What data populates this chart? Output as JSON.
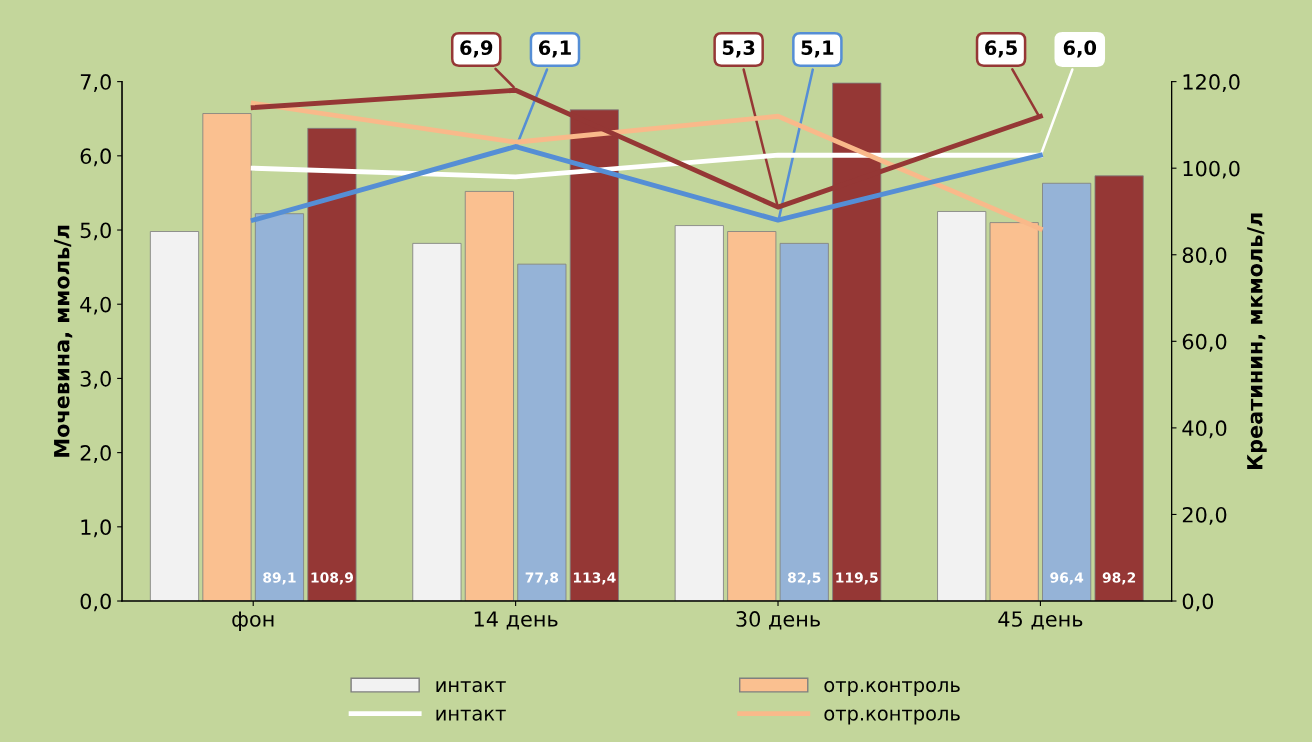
{
  "chart_data": {
    "type": "bar",
    "ylabel": "Мочевина, ммоль/л",
    "y2label": "Креатинин, мкмоль/л",
    "categories": [
      "фон",
      "14 день",
      "30 день",
      "45 день"
    ],
    "ylim": [
      0,
      7
    ],
    "yticks": [
      {
        "value": 0,
        "label": "0,0"
      },
      {
        "value": 1,
        "label": "1,0"
      },
      {
        "value": 2,
        "label": "2,0"
      },
      {
        "value": 3,
        "label": "3,0"
      },
      {
        "value": 4,
        "label": "4,0"
      },
      {
        "value": 5,
        "label": "5,0"
      },
      {
        "value": 6,
        "label": "6,0"
      },
      {
        "value": 7,
        "label": "7,0"
      }
    ],
    "y2lim": [
      0,
      120
    ],
    "y2ticks": [
      {
        "value": 0,
        "label": "0,0"
      },
      {
        "value": 20,
        "label": "20,0"
      },
      {
        "value": 40,
        "label": "40,0"
      },
      {
        "value": 60,
        "label": "60,0"
      },
      {
        "value": 80,
        "label": "80,0"
      },
      {
        "value": 100,
        "label": "100,0"
      },
      {
        "value": 120,
        "label": "120,0"
      }
    ],
    "legend": "bottom",
    "series": [
      {
        "name": "интакт",
        "color": "#f2f2f2",
        "values": [
          4.98,
          4.82,
          5.06,
          5.25
        ]
      },
      {
        "name": "отр.контроль",
        "color": "#fac090",
        "values": [
          6.57,
          5.52,
          4.98,
          5.1
        ]
      },
      {
        "color": "#95b3d7",
        "values": [
          5.22,
          4.54,
          4.82,
          5.63
        ]
      },
      {
        "color": "#953735",
        "values": [
          6.37,
          6.62,
          6.98,
          5.73
        ]
      },
      {
        "type": "line",
        "axis": "y2",
        "name": "интакт",
        "color": "#ffffff",
        "values": [
          100,
          98,
          103,
          103
        ]
      },
      {
        "type": "line",
        "axis": "y2",
        "name": "отр.контроль",
        "color": "#f9b98a",
        "values": [
          115,
          106,
          112,
          86
        ]
      },
      {
        "type": "line",
        "axis": "y2",
        "color": "#558ed5",
        "values": [
          88,
          105,
          88,
          103
        ]
      },
      {
        "type": "line",
        "axis": "y2",
        "color": "#953735",
        "values": [
          114,
          118,
          91,
          112
        ]
      }
    ],
    "annotations": [
      {
        "text": "6,9",
        "x": "14 день",
        "y": 6.9
      },
      {
        "text": "6,1",
        "x": "14 день",
        "y": 6.1
      },
      {
        "text": "5,3",
        "x": "30 день",
        "y": 5.3
      },
      {
        "text": "5,1",
        "x": "30 день",
        "y": 5.1
      },
      {
        "text": "6,5",
        "x": "45 день",
        "y": 6.5
      },
      {
        "text": "6,0",
        "x": "45 день",
        "y": 6.0
      },
      "89,1",
      "108,9",
      "77,8",
      "113,4",
      "82,5",
      "119,5",
      "96,4",
      "98,2"
    ]
  }
}
